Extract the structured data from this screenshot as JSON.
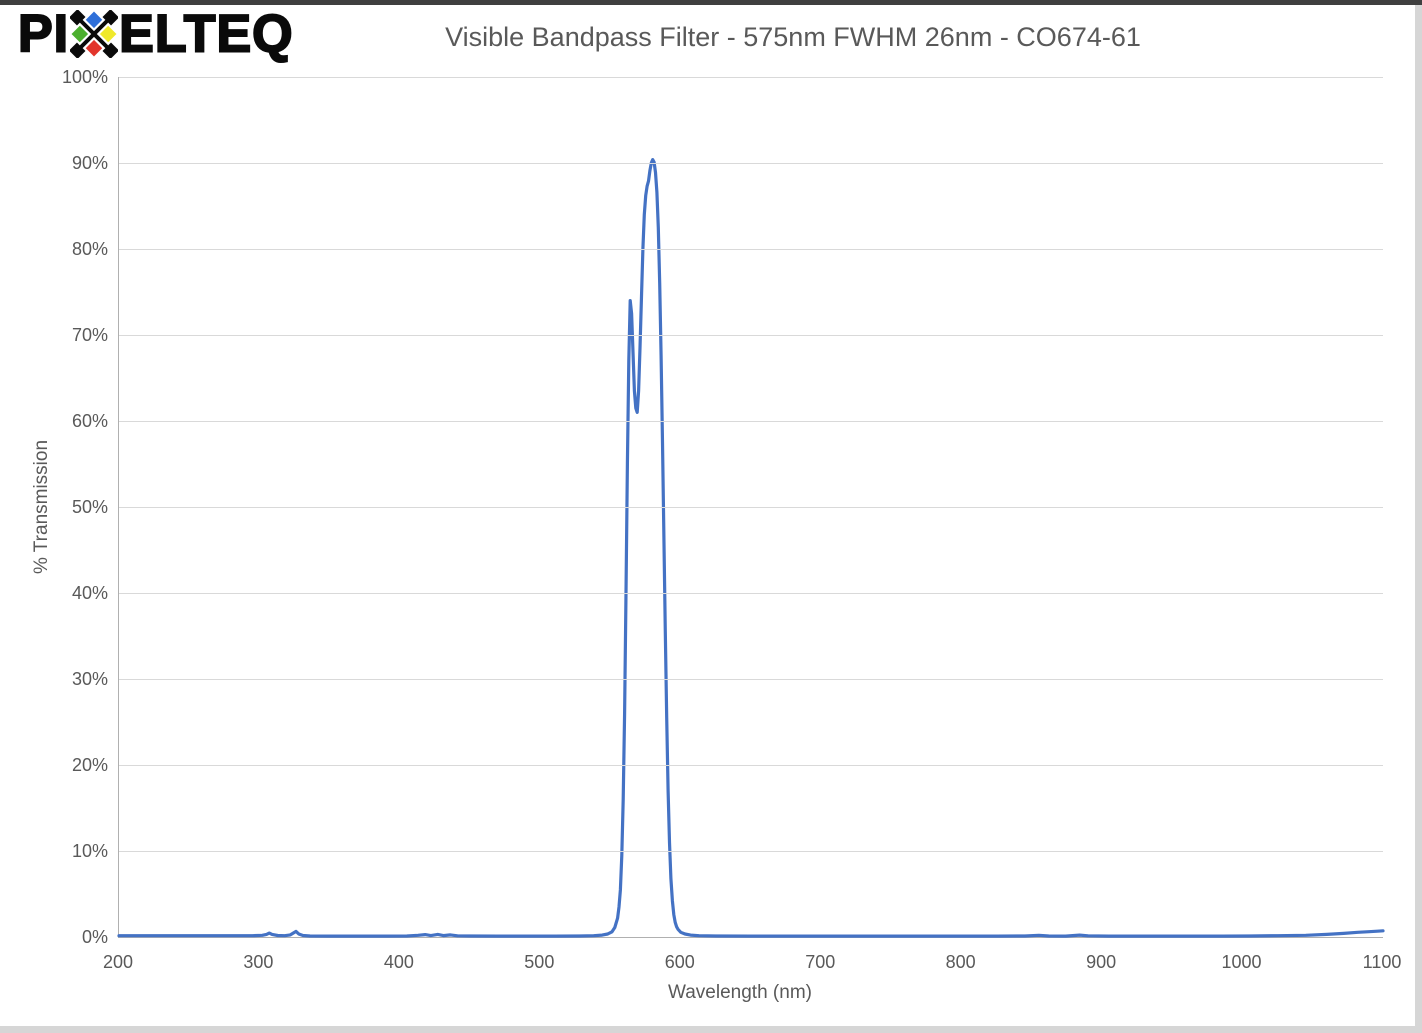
{
  "logo": {
    "full_text": "PIXELTEQ",
    "prefix": "PI",
    "suffix": "ELTEQ",
    "x_diamond_colors": {
      "top": "#2E6FD9",
      "left": "#4CAF2E",
      "right": "#F0E92B",
      "bottom": "#E2352C"
    }
  },
  "frame": {
    "top_color": "#3f3f3f",
    "side_color": "#d6d6d6"
  },
  "chart_data": {
    "type": "line",
    "title": "Visible Bandpass Filter - 575nm FWHM 26nm - CO674-61",
    "xlabel": "Wavelength (nm)",
    "ylabel": "% Transmission",
    "xlim": [
      200,
      1100
    ],
    "ylim": [
      0,
      100
    ],
    "grid": "horizontal-only",
    "legend": "none",
    "line_color": "#4472C4",
    "gridline_color": "#D9D9D9",
    "axis_color": "#B0B0B0",
    "text_color": "#595959",
    "x_ticks": [
      {
        "value": 200,
        "label": "200"
      },
      {
        "value": 300,
        "label": "300"
      },
      {
        "value": 400,
        "label": "400"
      },
      {
        "value": 500,
        "label": "500"
      },
      {
        "value": 600,
        "label": "600"
      },
      {
        "value": 700,
        "label": "700"
      },
      {
        "value": 800,
        "label": "800"
      },
      {
        "value": 900,
        "label": "900"
      },
      {
        "value": 1000,
        "label": "1000"
      },
      {
        "value": 1100,
        "label": "1100"
      }
    ],
    "y_ticks": [
      {
        "value": 0,
        "label": "0%"
      },
      {
        "value": 10,
        "label": "10%"
      },
      {
        "value": 20,
        "label": "20%"
      },
      {
        "value": 30,
        "label": "30%"
      },
      {
        "value": 40,
        "label": "40%"
      },
      {
        "value": 50,
        "label": "50%"
      },
      {
        "value": 60,
        "label": "60%"
      },
      {
        "value": 70,
        "label": "70%"
      },
      {
        "value": 80,
        "label": "80%"
      },
      {
        "value": 90,
        "label": "90%"
      },
      {
        "value": 100,
        "label": "100%"
      }
    ],
    "series": [
      {
        "name": "% Transmission",
        "color": "#4472C4",
        "points": [
          [
            200,
            0.15
          ],
          [
            225,
            0.15
          ],
          [
            250,
            0.15
          ],
          [
            275,
            0.15
          ],
          [
            295,
            0.15
          ],
          [
            302,
            0.2
          ],
          [
            305,
            0.3
          ],
          [
            307,
            0.45
          ],
          [
            309,
            0.3
          ],
          [
            313,
            0.18
          ],
          [
            318,
            0.15
          ],
          [
            322,
            0.25
          ],
          [
            325,
            0.55
          ],
          [
            326,
            0.65
          ],
          [
            328,
            0.35
          ],
          [
            331,
            0.18
          ],
          [
            336,
            0.12
          ],
          [
            350,
            0.1
          ],
          [
            370,
            0.1
          ],
          [
            390,
            0.1
          ],
          [
            405,
            0.12
          ],
          [
            413,
            0.2
          ],
          [
            418,
            0.28
          ],
          [
            422,
            0.16
          ],
          [
            427,
            0.3
          ],
          [
            431,
            0.16
          ],
          [
            436,
            0.24
          ],
          [
            441,
            0.14
          ],
          [
            450,
            0.12
          ],
          [
            470,
            0.1
          ],
          [
            490,
            0.1
          ],
          [
            510,
            0.1
          ],
          [
            528,
            0.12
          ],
          [
            538,
            0.15
          ],
          [
            544,
            0.22
          ],
          [
            548,
            0.35
          ],
          [
            551,
            0.6
          ],
          [
            553,
            1.1
          ],
          [
            555,
            2.2
          ],
          [
            556,
            3.5
          ],
          [
            557,
            5.5
          ],
          [
            558,
            9.5
          ],
          [
            559,
            16
          ],
          [
            560,
            26
          ],
          [
            561,
            40
          ],
          [
            562,
            55
          ],
          [
            563,
            67
          ],
          [
            564,
            74
          ],
          [
            565,
            72.5
          ],
          [
            566,
            68
          ],
          [
            567,
            63.5
          ],
          [
            568,
            61.5
          ],
          [
            569,
            61
          ],
          [
            570,
            63.5
          ],
          [
            571,
            68.5
          ],
          [
            572,
            74.5
          ],
          [
            573,
            80
          ],
          [
            574,
            84
          ],
          [
            575,
            86.2
          ],
          [
            576,
            87.3
          ],
          [
            577,
            87.9
          ],
          [
            578,
            89.1
          ],
          [
            579,
            90
          ],
          [
            580,
            90.4
          ],
          [
            581,
            90.1
          ],
          [
            582,
            88.9
          ],
          [
            583,
            86.6
          ],
          [
            584,
            82.5
          ],
          [
            585,
            76
          ],
          [
            586,
            67.5
          ],
          [
            587,
            57.5
          ],
          [
            588,
            46.5
          ],
          [
            589,
            35.5
          ],
          [
            590,
            25.5
          ],
          [
            591,
            17
          ],
          [
            592,
            11
          ],
          [
            593,
            6.8
          ],
          [
            594,
            4.2
          ],
          [
            595,
            2.6
          ],
          [
            596,
            1.7
          ],
          [
            597,
            1.2
          ],
          [
            598,
            0.9
          ],
          [
            600,
            0.55
          ],
          [
            603,
            0.35
          ],
          [
            607,
            0.22
          ],
          [
            613,
            0.15
          ],
          [
            625,
            0.12
          ],
          [
            650,
            0.1
          ],
          [
            675,
            0.1
          ],
          [
            700,
            0.1
          ],
          [
            725,
            0.1
          ],
          [
            750,
            0.1
          ],
          [
            775,
            0.1
          ],
          [
            800,
            0.1
          ],
          [
            825,
            0.1
          ],
          [
            845,
            0.12
          ],
          [
            855,
            0.2
          ],
          [
            862,
            0.12
          ],
          [
            874,
            0.1
          ],
          [
            884,
            0.22
          ],
          [
            890,
            0.14
          ],
          [
            905,
            0.1
          ],
          [
            925,
            0.1
          ],
          [
            945,
            0.1
          ],
          [
            965,
            0.1
          ],
          [
            985,
            0.1
          ],
          [
            1005,
            0.12
          ],
          [
            1025,
            0.15
          ],
          [
            1045,
            0.2
          ],
          [
            1060,
            0.3
          ],
          [
            1072,
            0.42
          ],
          [
            1082,
            0.55
          ],
          [
            1090,
            0.62
          ],
          [
            1096,
            0.68
          ],
          [
            1100,
            0.72
          ]
        ]
      }
    ]
  }
}
